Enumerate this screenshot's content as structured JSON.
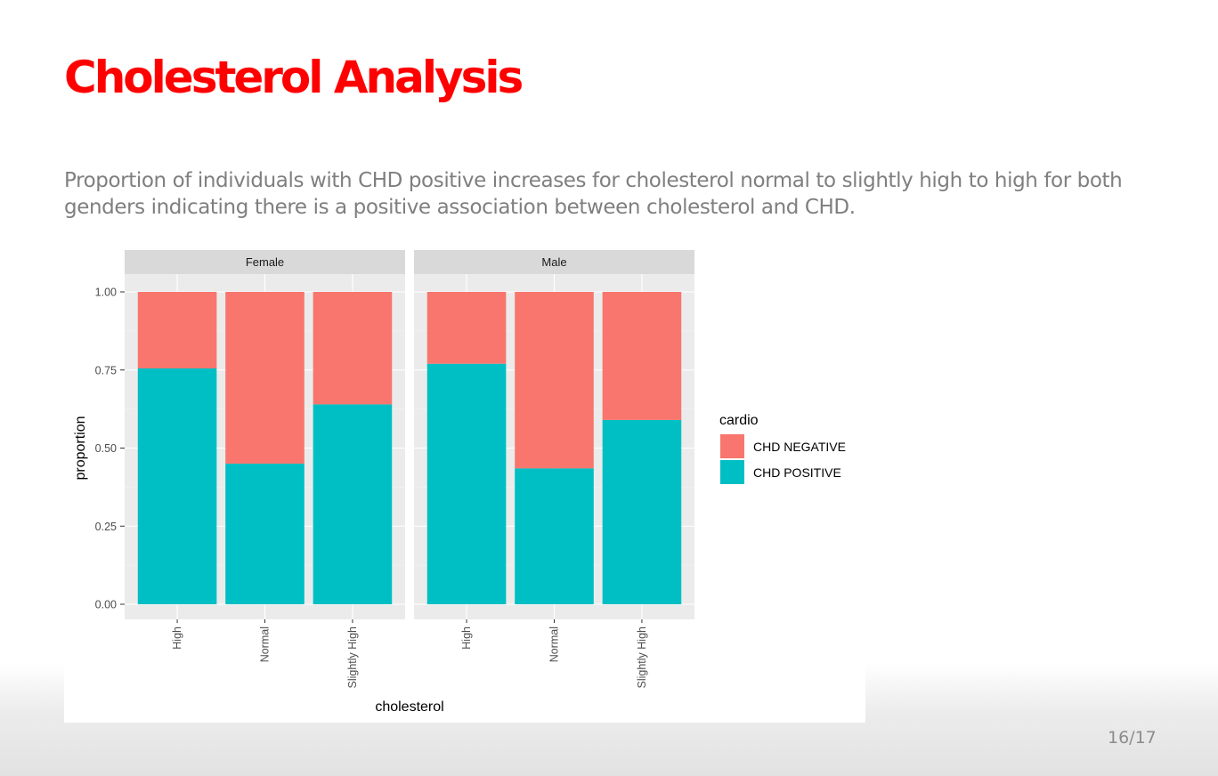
{
  "slide": {
    "title": "Cholesterol Analysis",
    "body": "Proportion of individuals with CHD positive increases for cholesterol normal to slightly high to high for both genders indicating there is a positive association between cholesterol and CHD.",
    "page_number": "16/17"
  },
  "colors": {
    "title": "#ff0000",
    "panel_background": "#ebebeb",
    "strip_background": "#d9d9d9",
    "chd_negative": "#f8766d",
    "chd_positive": "#00bfc4"
  },
  "chart_data": {
    "type": "bar",
    "stacked": true,
    "facet_by": "gender",
    "facets": [
      "Female",
      "Male"
    ],
    "categories": [
      "High",
      "Normal",
      "Slightly High"
    ],
    "xlabel": "cholesterol",
    "ylabel": "proportion",
    "ylim": [
      0,
      1
    ],
    "yticks": [
      "0.00",
      "0.25",
      "0.50",
      "0.75",
      "1.00"
    ],
    "ytick_values": [
      0,
      0.25,
      0.5,
      0.75,
      1
    ],
    "grid": true,
    "legend": {
      "title": "cardio",
      "position": "right",
      "entries": [
        "CHD NEGATIVE",
        "CHD POSITIVE"
      ]
    },
    "series": [
      {
        "name": "CHD POSITIVE",
        "color": "#00bfc4",
        "values": {
          "Female": [
            0.755,
            0.45,
            0.64
          ],
          "Male": [
            0.77,
            0.435,
            0.59
          ]
        }
      },
      {
        "name": "CHD NEGATIVE",
        "color": "#f8766d",
        "values": {
          "Female": [
            0.245,
            0.55,
            0.36
          ],
          "Male": [
            0.23,
            0.565,
            0.41
          ]
        }
      }
    ]
  }
}
